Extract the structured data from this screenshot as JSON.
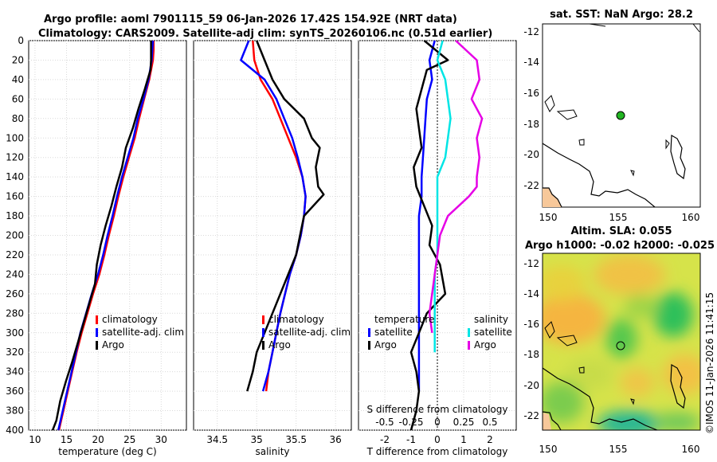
{
  "title_line1": "Argo profile: aoml 7901115_59 06-Jan-2026 17.42S 154.92E (NRT data)",
  "title_line2": "Climatology: CARS2009. Satellite-adj clim: synTS_20260106.nc (0.51d earlier)",
  "watermark": "©IMOS 11-Jan-2026 11:41:15",
  "colors": {
    "clim": "#ff0000",
    "sat": "#0000ff",
    "argo": "#000000",
    "sat_s": "#00e5e5",
    "argo_s": "#e600e6",
    "land": "#f7c89a"
  },
  "chart_data": [
    {
      "id": "temperature",
      "type": "line",
      "xlabel": "temperature (deg C)",
      "xlim": [
        9,
        34
      ],
      "ylim": [
        0,
        400
      ],
      "xticks": [
        10,
        15,
        20,
        25,
        30
      ],
      "yticks": [
        0,
        20,
        40,
        60,
        80,
        100,
        120,
        140,
        160,
        180,
        200,
        220,
        240,
        260,
        280,
        300,
        320,
        340,
        360,
        380,
        400
      ],
      "legend": [
        "climatology",
        "satellite-adj. clim",
        "Argo"
      ],
      "series": [
        {
          "name": "climatology",
          "color": "clim",
          "x": [
            28.8,
            28.8,
            28.7,
            28.1,
            27.3,
            26.5,
            25.8,
            24.9,
            24.0,
            23.2,
            22.5,
            21.7,
            21.0,
            20.2,
            19.2,
            18.3,
            17.4,
            16.6,
            15.9,
            15.2,
            14.5,
            13.8
          ],
          "y": [
            0,
            10,
            20,
            40,
            60,
            80,
            100,
            120,
            140,
            160,
            180,
            200,
            220,
            240,
            260,
            280,
            300,
            320,
            340,
            360,
            380,
            400
          ]
        },
        {
          "name": "satellite-adj. clim",
          "color": "sat",
          "x": [
            28.7,
            28.6,
            28.5,
            28.0,
            27.2,
            26.3,
            25.6,
            24.7,
            23.8,
            23.0,
            22.3,
            21.5,
            20.8,
            20.0,
            19.0,
            18.1,
            17.2,
            16.5,
            15.8,
            15.1,
            14.4,
            13.7
          ],
          "y": [
            0,
            10,
            20,
            40,
            60,
            80,
            100,
            120,
            140,
            160,
            180,
            200,
            220,
            240,
            260,
            280,
            300,
            320,
            340,
            360,
            380,
            400
          ]
        },
        {
          "name": "Argo",
          "color": "argo",
          "x": [
            28.4,
            28.4,
            28.4,
            28.3,
            27.4,
            26.4,
            25.5,
            24.4,
            23.8,
            22.9,
            22.1,
            21.2,
            20.4,
            19.8,
            19.5,
            18.6,
            17.7,
            16.8,
            15.9,
            14.9,
            14.0,
            13.4,
            12.8
          ],
          "y": [
            0,
            10,
            20,
            30,
            50,
            70,
            90,
            110,
            130,
            150,
            170,
            190,
            210,
            230,
            250,
            270,
            290,
            310,
            330,
            350,
            370,
            390,
            400
          ]
        }
      ]
    },
    {
      "id": "salinity",
      "type": "line",
      "xlabel": "salinity",
      "xlim": [
        34.2,
        36.2
      ],
      "ylim": [
        0,
        400
      ],
      "xticks": [
        34.5,
        35,
        35.5,
        36
      ],
      "legend": [
        "climatology",
        "satellite-adj. clim",
        "Argo"
      ],
      "series": [
        {
          "name": "climatology",
          "color": "clim",
          "x": [
            34.95,
            34.97,
            35.05,
            35.2,
            35.3,
            35.4,
            35.5,
            35.58,
            35.62,
            35.6,
            35.56,
            35.5,
            35.42,
            35.36,
            35.3,
            35.25,
            35.2,
            35.15,
            35.12
          ],
          "y": [
            0,
            20,
            40,
            60,
            80,
            100,
            120,
            140,
            160,
            180,
            200,
            220,
            240,
            260,
            280,
            300,
            320,
            340,
            360
          ]
        },
        {
          "name": "satellite-adj. clim",
          "color": "sat",
          "x": [
            34.9,
            34.8,
            35.1,
            35.25,
            35.35,
            35.45,
            35.52,
            35.58,
            35.62,
            35.6,
            35.56,
            35.5,
            35.42,
            35.36,
            35.3,
            35.25,
            35.2,
            35.15,
            35.08
          ],
          "y": [
            0,
            20,
            40,
            60,
            80,
            100,
            120,
            140,
            160,
            180,
            200,
            220,
            240,
            260,
            280,
            300,
            320,
            340,
            360
          ]
        },
        {
          "name": "Argo",
          "color": "argo",
          "x": [
            35.0,
            35.1,
            35.2,
            35.35,
            35.6,
            35.7,
            35.8,
            35.75,
            35.78,
            35.85,
            35.6,
            35.55,
            35.5,
            35.4,
            35.3,
            35.2,
            35.1,
            35.0,
            34.95,
            34.88
          ],
          "y": [
            0,
            20,
            40,
            60,
            80,
            100,
            110,
            130,
            150,
            158,
            180,
            200,
            220,
            240,
            260,
            280,
            300,
            320,
            340,
            360
          ]
        }
      ]
    },
    {
      "id": "difference",
      "type": "line",
      "xlabel": "T difference from climatology",
      "xlabel_top": "S difference from climatology",
      "xlim": [
        -3,
        3
      ],
      "ylim": [
        0,
        400
      ],
      "xticks": [
        -2,
        -1,
        0,
        1,
        2
      ],
      "xticks_s_labels": [
        "-0.5",
        "-0.25",
        "0",
        "0.25",
        "0.5"
      ],
      "legend_t_header": "temperature",
      "legend_s_header": "salinity",
      "legend": [
        "satellite",
        "Argo",
        "satellite",
        "Argo"
      ],
      "series": [
        {
          "name": "T satellite",
          "color": "sat",
          "x": [
            -0.1,
            -0.3,
            -0.2,
            -0.4,
            -0.45,
            -0.5,
            -0.55,
            -0.6,
            -0.6,
            -0.7,
            -0.7,
            -0.7,
            -0.7,
            -0.7,
            -0.7,
            -0.7,
            -0.7,
            -0.7,
            -0.7
          ],
          "y": [
            0,
            20,
            40,
            60,
            80,
            100,
            120,
            140,
            160,
            180,
            200,
            220,
            240,
            260,
            280,
            300,
            320,
            340,
            360
          ]
        },
        {
          "name": "T Argo",
          "color": "argo",
          "x": [
            -0.5,
            0.4,
            -0.4,
            -0.6,
            -0.8,
            -0.7,
            -0.6,
            -0.9,
            -0.8,
            -0.5,
            -0.2,
            -0.3,
            0.1,
            0.3,
            -0.4,
            -0.7,
            -1.0,
            -0.8,
            -0.7,
            -0.8,
            -1.0
          ],
          "y": [
            0,
            20,
            30,
            50,
            70,
            90,
            110,
            130,
            150,
            170,
            190,
            210,
            230,
            260,
            280,
            300,
            320,
            340,
            360,
            380,
            400
          ]
        },
        {
          "name": "S satellite",
          "color": "sat_s",
          "x": [
            0.2,
            0.0,
            0.3,
            0.4,
            0.5,
            0.4,
            0.3,
            0.0,
            0.0,
            0.0,
            0.0,
            0.0,
            -0.1,
            -0.1,
            -0.1,
            -0.1,
            -0.1
          ],
          "y": [
            0,
            20,
            40,
            60,
            80,
            100,
            120,
            140,
            160,
            180,
            200,
            220,
            240,
            260,
            280,
            300,
            320
          ]
        },
        {
          "name": "S Argo",
          "color": "argo_s",
          "x": [
            0.7,
            1.5,
            1.6,
            1.3,
            1.7,
            1.5,
            1.6,
            1.5,
            1.5,
            1.2,
            0.4,
            0.1,
            0.0,
            -0.1,
            -0.2,
            -0.3,
            -0.2
          ],
          "y": [
            0,
            20,
            40,
            60,
            80,
            100,
            120,
            140,
            150,
            160,
            180,
            200,
            220,
            240,
            260,
            280,
            300
          ]
        }
      ]
    }
  ],
  "map_sst": {
    "title": "sat. SST: NaN Argo: 28.2",
    "xticks": [
      "150",
      "155",
      "160"
    ],
    "yticks": [
      "-12",
      "-14",
      "-16",
      "-18",
      "-20",
      "-22"
    ]
  },
  "map_sla": {
    "title_line1": "Altim. SLA: 0.055",
    "title_line2": "Argo h1000: -0.02 h2000: -0.025",
    "xticks": [
      "150",
      "155",
      "160"
    ],
    "yticks": [
      "-12",
      "-14",
      "-16",
      "-18",
      "-20",
      "-22"
    ]
  }
}
